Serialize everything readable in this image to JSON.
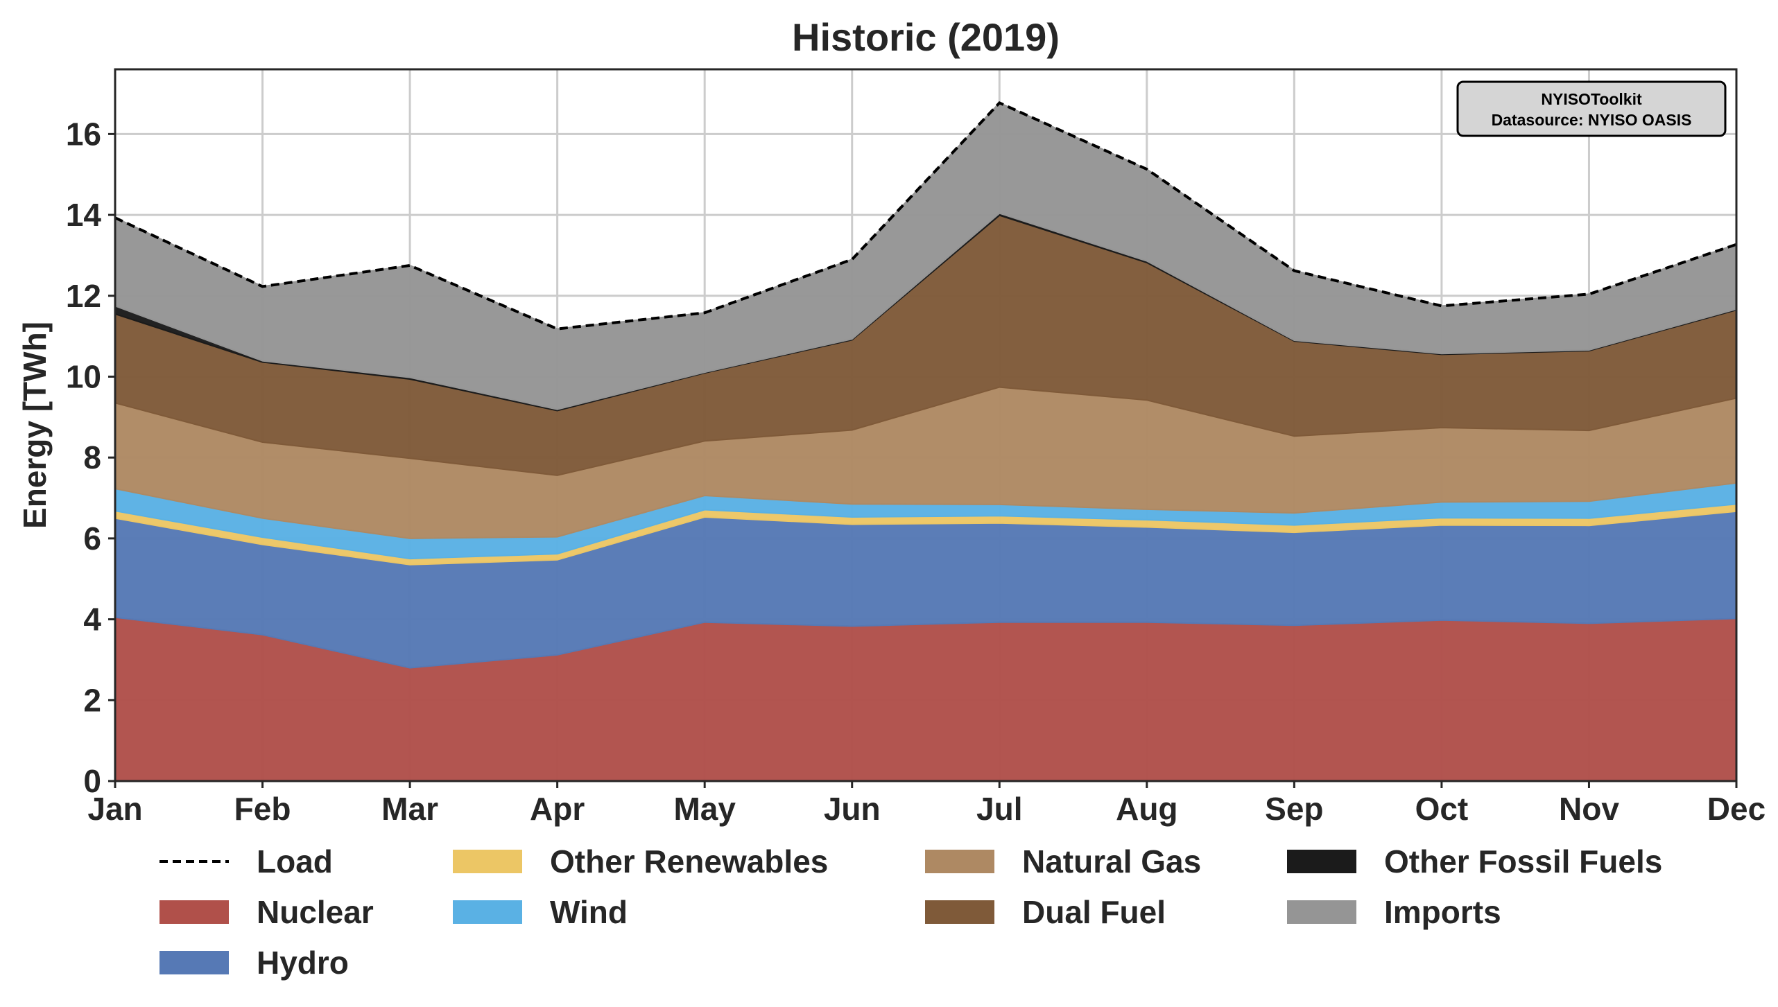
{
  "chart_data": {
    "type": "area",
    "title": "Historic (2019)",
    "xlabel": "",
    "ylabel": "Energy [TWh]",
    "categories": [
      "Jan",
      "Feb",
      "Mar",
      "Apr",
      "May",
      "Jun",
      "Jul",
      "Aug",
      "Sep",
      "Oct",
      "Nov",
      "Dec"
    ],
    "ylim": [
      0,
      17.6
    ],
    "yticks": [
      0,
      2,
      4,
      6,
      8,
      10,
      12,
      14,
      16
    ],
    "grid": true,
    "stacked": true,
    "series": [
      {
        "name": "Nuclear",
        "color": "#b0504a",
        "values": [
          4.05,
          3.62,
          2.8,
          3.12,
          3.93,
          3.83,
          3.93,
          3.93,
          3.85,
          3.98,
          3.9,
          4.02
        ]
      },
      {
        "name": "Hydro",
        "color": "#5679b5",
        "values": [
          2.45,
          2.23,
          2.55,
          2.35,
          2.6,
          2.52,
          2.45,
          2.35,
          2.3,
          2.35,
          2.42,
          2.65
        ]
      },
      {
        "name": "Other Renewables",
        "color": "#ecc665",
        "values": [
          0.18,
          0.18,
          0.15,
          0.15,
          0.18,
          0.18,
          0.18,
          0.18,
          0.18,
          0.18,
          0.18,
          0.18
        ]
      },
      {
        "name": "Wind",
        "color": "#5ab1e4",
        "values": [
          0.55,
          0.47,
          0.5,
          0.42,
          0.35,
          0.32,
          0.28,
          0.26,
          0.3,
          0.39,
          0.42,
          0.52
        ]
      },
      {
        "name": "Natural Gas",
        "color": "#ae8963",
        "values": [
          2.12,
          1.88,
          1.98,
          1.52,
          1.35,
          1.83,
          2.9,
          2.7,
          1.9,
          1.84,
          1.75,
          2.1
        ]
      },
      {
        "name": "Dual Fuel",
        "color": "#7f5a39",
        "values": [
          2.2,
          1.98,
          1.96,
          1.6,
          1.68,
          2.23,
          4.25,
          3.4,
          2.35,
          1.81,
          1.97,
          2.18
        ]
      },
      {
        "name": "Other Fossil Fuels",
        "color": "#1b1b1b",
        "values": [
          0.2,
          0.03,
          0.04,
          0.03,
          0.02,
          0.02,
          0.05,
          0.04,
          0.02,
          0.02,
          0.02,
          0.02
        ]
      },
      {
        "name": "Imports",
        "color": "#959595",
        "values": [
          2.18,
          1.84,
          2.77,
          1.99,
          1.47,
          1.97,
          2.73,
          2.27,
          1.72,
          1.18,
          1.38,
          1.6
        ]
      }
    ],
    "load": {
      "name": "Load",
      "values": [
        13.93,
        12.23,
        12.75,
        11.18,
        11.58,
        12.9,
        16.77,
        15.13,
        12.62,
        11.75,
        12.04,
        13.27
      ]
    },
    "legend": {
      "placement": "bottom",
      "entries": [
        {
          "name": "Load",
          "kind": "line",
          "color": "#000000"
        },
        {
          "name": "Nuclear",
          "kind": "patch",
          "color": "#b0504a"
        },
        {
          "name": "Hydro",
          "kind": "patch",
          "color": "#5679b5"
        },
        {
          "name": "Other Renewables",
          "kind": "patch",
          "color": "#ecc665"
        },
        {
          "name": "Wind",
          "kind": "patch",
          "color": "#5ab1e4"
        },
        {
          "name": "Natural Gas",
          "kind": "patch",
          "color": "#ae8963"
        },
        {
          "name": "Dual Fuel",
          "kind": "patch",
          "color": "#7f5a39"
        },
        {
          "name": "Other Fossil Fuels",
          "kind": "patch",
          "color": "#1b1b1b"
        },
        {
          "name": "Imports",
          "kind": "patch",
          "color": "#959595"
        }
      ]
    },
    "annotation": {
      "lines": [
        "NYISOToolkit",
        "Datasource: NYISO OASIS"
      ],
      "placement": "top-right"
    }
  }
}
